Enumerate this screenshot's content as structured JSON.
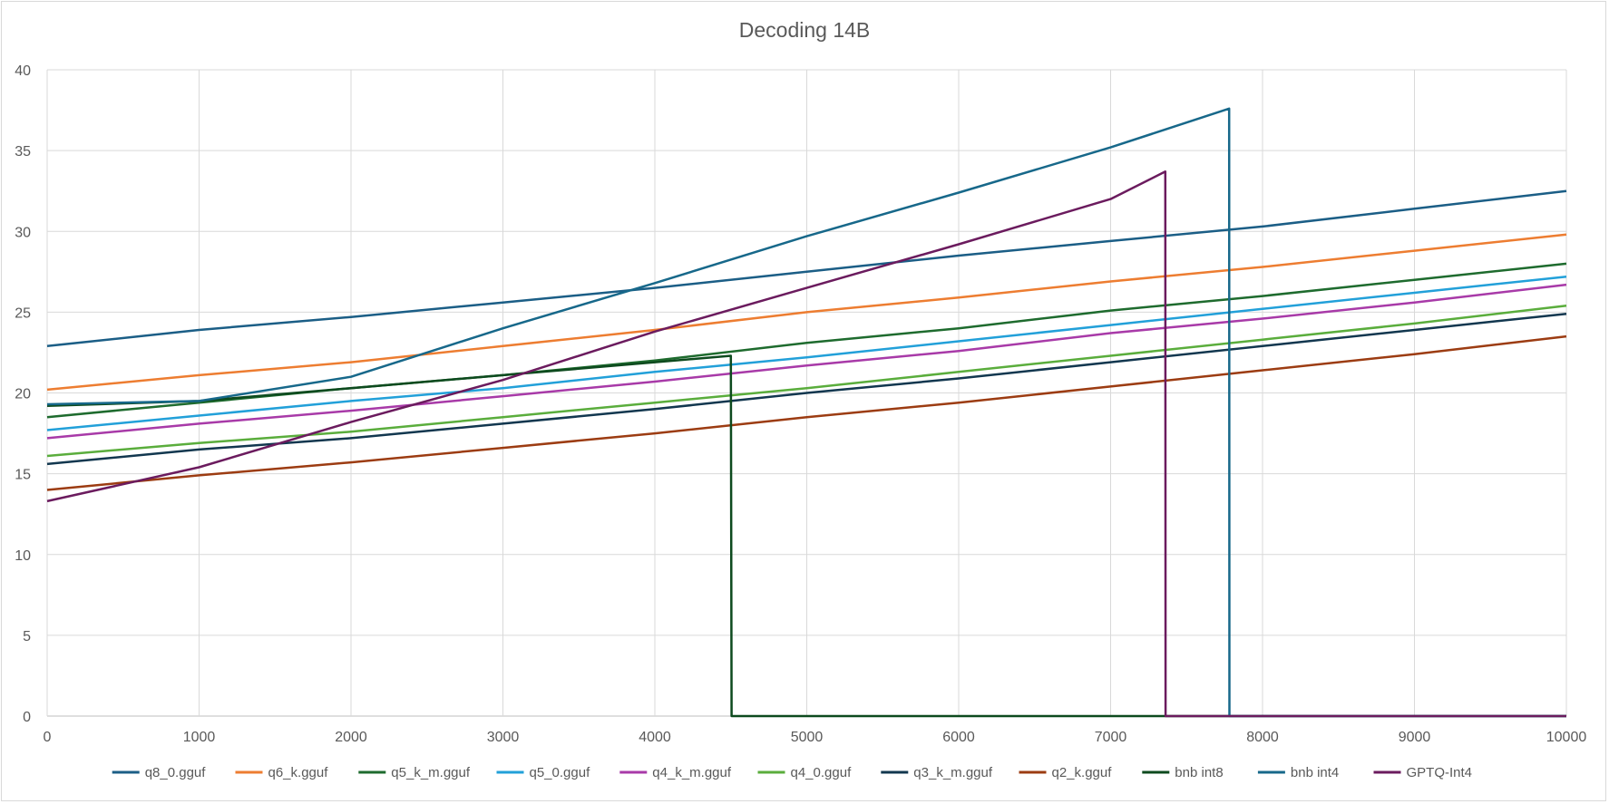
{
  "chart_data": {
    "type": "line",
    "title": "Decoding 14B",
    "xlabel": "",
    "ylabel": "",
    "xlim": [
      0,
      10000
    ],
    "ylim": [
      0,
      40
    ],
    "x_ticks": [
      "0",
      "1000",
      "2000",
      "3000",
      "4000",
      "5000",
      "6000",
      "7000",
      "8000",
      "9000",
      "10000"
    ],
    "y_ticks": [
      "0",
      "5",
      "10",
      "15",
      "20",
      "25",
      "30",
      "35",
      "40"
    ],
    "grid": true,
    "legend_position": "bottom",
    "series": [
      {
        "name": "q8_0.gguf",
        "color": "#1b5e86",
        "points": [
          [
            0,
            22.9
          ],
          [
            1000,
            23.9
          ],
          [
            2000,
            24.7
          ],
          [
            3000,
            25.6
          ],
          [
            4000,
            26.5
          ],
          [
            5000,
            27.5
          ],
          [
            6000,
            28.5
          ],
          [
            7000,
            29.4
          ],
          [
            8000,
            30.3
          ],
          [
            9000,
            31.4
          ],
          [
            10000,
            32.5
          ]
        ]
      },
      {
        "name": "q6_k.gguf",
        "color": "#ed7d31",
        "points": [
          [
            0,
            20.2
          ],
          [
            1000,
            21.1
          ],
          [
            2000,
            21.9
          ],
          [
            3000,
            22.9
          ],
          [
            4000,
            23.9
          ],
          [
            5000,
            25.0
          ],
          [
            6000,
            25.9
          ],
          [
            7000,
            26.9
          ],
          [
            8000,
            27.8
          ],
          [
            9000,
            28.8
          ],
          [
            10000,
            29.8
          ]
        ]
      },
      {
        "name": "q5_k_m.gguf",
        "color": "#1e6b2e",
        "points": [
          [
            0,
            18.5
          ],
          [
            1000,
            19.4
          ],
          [
            2000,
            20.3
          ],
          [
            3000,
            21.1
          ],
          [
            4000,
            22.0
          ],
          [
            5000,
            23.1
          ],
          [
            6000,
            24.0
          ],
          [
            7000,
            25.1
          ],
          [
            8000,
            26.0
          ],
          [
            9000,
            27.0
          ],
          [
            10000,
            28.0
          ]
        ]
      },
      {
        "name": "q5_0.gguf",
        "color": "#22a0d9",
        "points": [
          [
            0,
            17.7
          ],
          [
            1000,
            18.6
          ],
          [
            2000,
            19.5
          ],
          [
            3000,
            20.3
          ],
          [
            4000,
            21.3
          ],
          [
            5000,
            22.2
          ],
          [
            6000,
            23.2
          ],
          [
            7000,
            24.2
          ],
          [
            8000,
            25.2
          ],
          [
            9000,
            26.2
          ],
          [
            10000,
            27.2
          ]
        ]
      },
      {
        "name": "q4_k_m.gguf",
        "color": "#a83aa8",
        "points": [
          [
            0,
            17.2
          ],
          [
            1000,
            18.1
          ],
          [
            2000,
            18.9
          ],
          [
            3000,
            19.8
          ],
          [
            4000,
            20.7
          ],
          [
            5000,
            21.7
          ],
          [
            6000,
            22.6
          ],
          [
            7000,
            23.7
          ],
          [
            8000,
            24.6
          ],
          [
            9000,
            25.6
          ],
          [
            10000,
            26.7
          ]
        ]
      },
      {
        "name": "q4_0.gguf",
        "color": "#5aad3c",
        "points": [
          [
            0,
            16.1
          ],
          [
            1000,
            16.9
          ],
          [
            2000,
            17.6
          ],
          [
            3000,
            18.5
          ],
          [
            4000,
            19.4
          ],
          [
            5000,
            20.3
          ],
          [
            6000,
            21.3
          ],
          [
            7000,
            22.3
          ],
          [
            8000,
            23.3
          ],
          [
            9000,
            24.3
          ],
          [
            10000,
            25.4
          ]
        ]
      },
      {
        "name": "q3_k_m.gguf",
        "color": "#12374f",
        "points": [
          [
            0,
            15.6
          ],
          [
            1000,
            16.5
          ],
          [
            2000,
            17.2
          ],
          [
            3000,
            18.1
          ],
          [
            4000,
            19.0
          ],
          [
            5000,
            20.0
          ],
          [
            6000,
            20.9
          ],
          [
            7000,
            21.9
          ],
          [
            8000,
            22.9
          ],
          [
            9000,
            23.9
          ],
          [
            10000,
            24.9
          ]
        ]
      },
      {
        "name": "q2_k.gguf",
        "color": "#9c3c12",
        "points": [
          [
            0,
            14.0
          ],
          [
            1000,
            14.9
          ],
          [
            2000,
            15.7
          ],
          [
            3000,
            16.6
          ],
          [
            4000,
            17.5
          ],
          [
            5000,
            18.5
          ],
          [
            6000,
            19.4
          ],
          [
            7000,
            20.4
          ],
          [
            8000,
            21.4
          ],
          [
            9000,
            22.4
          ],
          [
            10000,
            23.5
          ]
        ]
      },
      {
        "name": "bnb int8",
        "color": "#0d4a1e",
        "points": [
          [
            0,
            19.2
          ],
          [
            1000,
            19.5
          ],
          [
            2000,
            20.3
          ],
          [
            3000,
            21.1
          ],
          [
            4000,
            21.9
          ],
          [
            4500,
            22.3
          ],
          [
            4505,
            0
          ],
          [
            10000,
            0
          ]
        ]
      },
      {
        "name": "bnb int4",
        "color": "#17688a",
        "points": [
          [
            0,
            19.3
          ],
          [
            1000,
            19.5
          ],
          [
            2000,
            21.0
          ],
          [
            3000,
            24.0
          ],
          [
            4000,
            26.8
          ],
          [
            5000,
            29.7
          ],
          [
            6000,
            32.4
          ],
          [
            7000,
            35.2
          ],
          [
            7780,
            37.6
          ],
          [
            7782,
            0
          ],
          [
            10000,
            0
          ]
        ]
      },
      {
        "name": "GPTQ-Int4",
        "color": "#6b1b5e",
        "points": [
          [
            0,
            13.3
          ],
          [
            1000,
            15.4
          ],
          [
            2000,
            18.2
          ],
          [
            3000,
            20.8
          ],
          [
            4000,
            23.8
          ],
          [
            5000,
            26.5
          ],
          [
            6000,
            29.2
          ],
          [
            7000,
            32.0
          ],
          [
            7360,
            33.7
          ],
          [
            7362,
            0
          ],
          [
            10000,
            0
          ]
        ]
      }
    ]
  }
}
